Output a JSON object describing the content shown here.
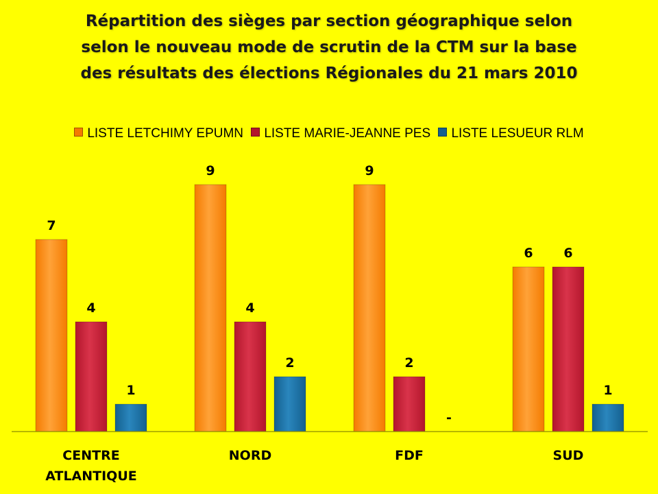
{
  "chart_data": {
    "type": "bar",
    "title_lines": [
      "Répartition des sièges par section géographique selon",
      "selon le nouveau mode de scrutin de la CTM sur la base",
      "des résultats des élections Régionales du 21 mars 2010"
    ],
    "categories": [
      [
        "CENTRE",
        "ATLANTIQUE"
      ],
      [
        "NORD"
      ],
      [
        "FDF"
      ],
      [
        "SUD"
      ]
    ],
    "series": [
      {
        "name": "LISTE LETCHIMY EPUMN",
        "values": [
          7,
          9,
          9,
          6
        ],
        "labels": [
          "7",
          "9",
          "9",
          "6"
        ],
        "color": "#f47b00",
        "color_light": "#ffa238"
      },
      {
        "name": "LISTE MARIE-JEANNE PES",
        "values": [
          4,
          4,
          2,
          6
        ],
        "labels": [
          "4",
          "4",
          "2",
          "6"
        ],
        "color": "#b3162c",
        "color_light": "#d9334a"
      },
      {
        "name": "LISTE LESUEUR RLM",
        "values": [
          1,
          2,
          0,
          1
        ],
        "labels": [
          "1",
          "2",
          "-",
          "1"
        ],
        "color": "#14608f",
        "color_light": "#2a86bd"
      }
    ],
    "ylim": [
      0,
      9
    ],
    "grid": false,
    "legend_position": "top",
    "xlabel": "",
    "ylabel": ""
  }
}
